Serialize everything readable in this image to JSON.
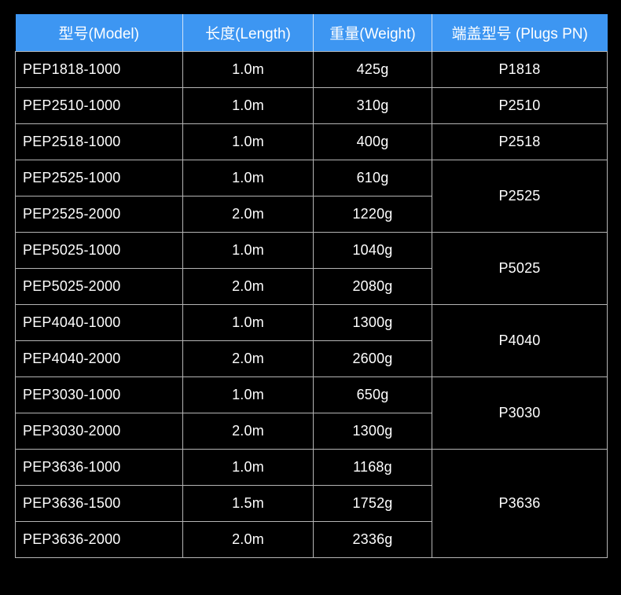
{
  "colors": {
    "background": "#000000",
    "header_bg": "#3d96f2",
    "header_divider": "#cfe2f8",
    "border": "#b5b5b5",
    "text": "#ffffff",
    "header_text": "#ffffff"
  },
  "table": {
    "headers": {
      "model": "型号(Model)",
      "length": "长度(Length)",
      "weight": "重量(Weight)",
      "plug": "端盖型号 (Plugs PN)"
    },
    "rows": [
      {
        "model": "PEP1818-1000",
        "length": "1.0m",
        "weight": "425g",
        "plug": "P1818"
      },
      {
        "model": "PEP2510-1000",
        "length": "1.0m",
        "weight": "310g",
        "plug": "P2510"
      },
      {
        "model": "PEP2518-1000",
        "length": "1.0m",
        "weight": "400g",
        "plug": "P2518"
      },
      {
        "model": "PEP2525-1000",
        "length": "1.0m",
        "weight": "610g",
        "plug": "P2525"
      },
      {
        "model": "PEP2525-2000",
        "length": "2.0m",
        "weight": "1220g"
      },
      {
        "model": "PEP5025-1000",
        "length": "1.0m",
        "weight": "1040g",
        "plug": "P5025"
      },
      {
        "model": "PEP5025-2000",
        "length": "2.0m",
        "weight": "2080g"
      },
      {
        "model": "PEP4040-1000",
        "length": "1.0m",
        "weight": "1300g",
        "plug": "P4040"
      },
      {
        "model": "PEP4040-2000",
        "length": "2.0m",
        "weight": "2600g"
      },
      {
        "model": "PEP3030-1000",
        "length": "1.0m",
        "weight": "650g",
        "plug": "P3030"
      },
      {
        "model": "PEP3030-2000",
        "length": "2.0m",
        "weight": "1300g"
      },
      {
        "model": "PEP3636-1000",
        "length": "1.0m",
        "weight": "1168g",
        "plug": "P3636"
      },
      {
        "model": "PEP3636-1500",
        "length": "1.5m",
        "weight": "1752g"
      },
      {
        "model": "PEP3636-2000",
        "length": "2.0m",
        "weight": "2336g"
      }
    ]
  }
}
